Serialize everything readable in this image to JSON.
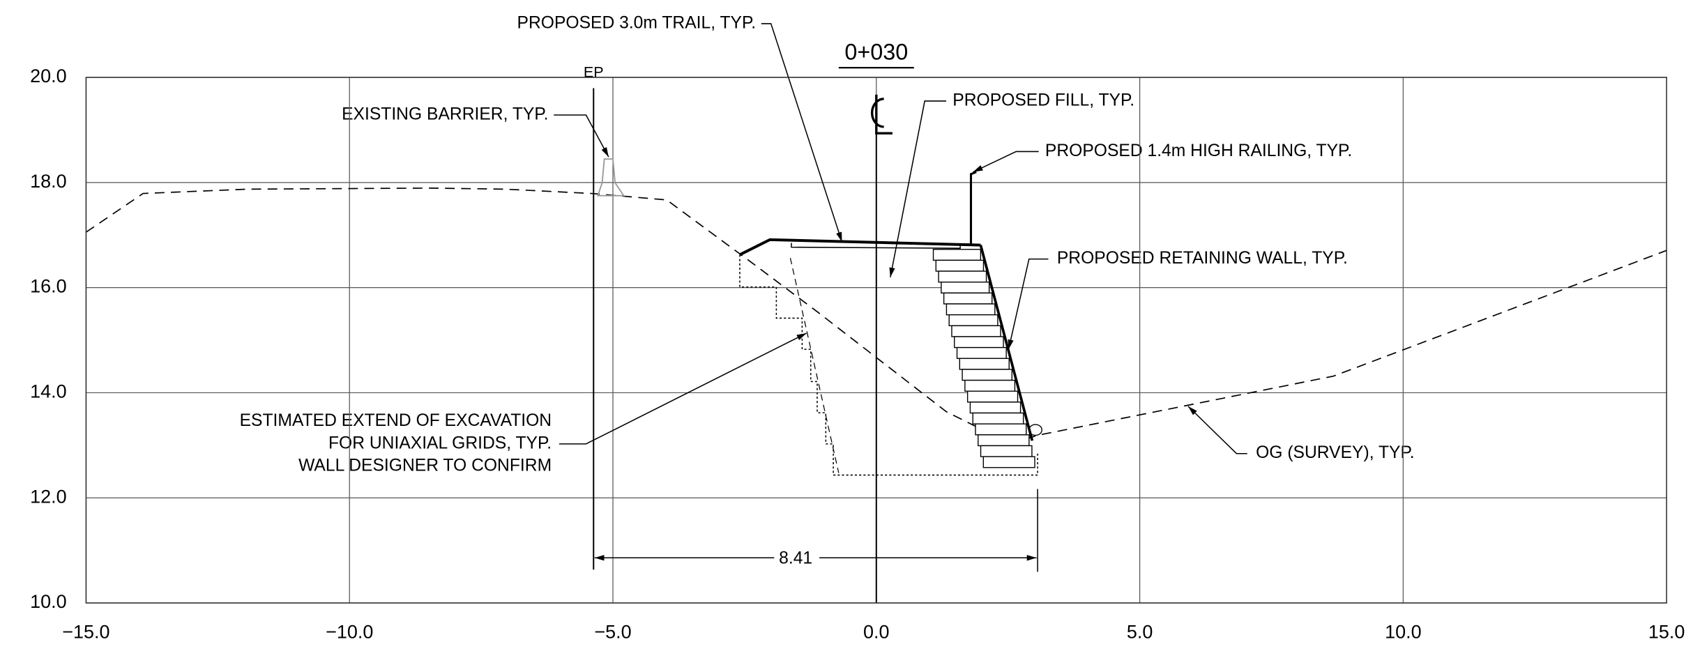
{
  "axes": {
    "xlim": [
      -15,
      15
    ],
    "ylim": [
      10,
      20
    ],
    "xticks": [
      {
        "value": -15,
        "label": "−15.0"
      },
      {
        "value": -10,
        "label": "−10.0"
      },
      {
        "value": -5,
        "label": "−5.0"
      },
      {
        "value": 0,
        "label": "0.0"
      },
      {
        "value": 5,
        "label": "5.0"
      },
      {
        "value": 10,
        "label": "10.0"
      },
      {
        "value": 15,
        "label": "15.0"
      }
    ],
    "yticks": [
      {
        "value": 10,
        "label": "10.0"
      },
      {
        "value": 12,
        "label": "12.0"
      },
      {
        "value": 14,
        "label": "14.0"
      },
      {
        "value": 16,
        "label": "16.0"
      },
      {
        "value": 18,
        "label": "18.0"
      },
      {
        "value": 20,
        "label": "20.0"
      }
    ],
    "grid": true
  },
  "station": "0+030",
  "ep_label": "EP",
  "dimension": "8.41",
  "annotations": {
    "trail": "PROPOSED 3.0m TRAIL, TYP.",
    "barrier": "EXISTING BARRIER, TYP.",
    "fill": "PROPOSED FILL, TYP.",
    "railing": "PROPOSED 1.4m HIGH RAILING, TYP.",
    "wall": "PROPOSED RETAINING WALL, TYP.",
    "excavation": [
      "ESTIMATED EXTEND OF EXCAVATION",
      "FOR UNIAXIAL GRIDS, TYP.",
      "WALL DESIGNER TO CONFIRM"
    ],
    "og": "OG (SURVEY), TYP."
  }
}
